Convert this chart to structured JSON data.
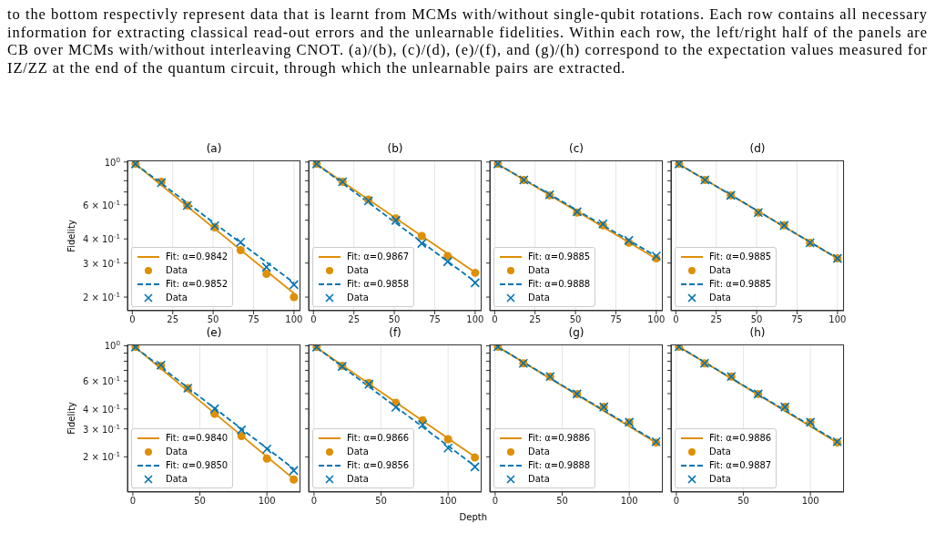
{
  "chart_data": [
    {
      "type": "line",
      "title": "(a)",
      "ylabel": "Fidelity",
      "log": true,
      "grid": "x",
      "legend": "bottom left",
      "xlim": [
        -3,
        104
      ],
      "xticks": [
        0,
        25,
        50,
        75,
        100
      ],
      "ylim": [
        0.17,
        1.02
      ],
      "yticks": [
        {
          "value": 0.2,
          "label": "2 × 10$^{-1}$"
        },
        {
          "value": 0.3,
          "label": "3 × 10$^{-1}$"
        },
        {
          "value": 0.4,
          "label": "4 × 10$^{-1}$"
        },
        {
          "value": 0.5,
          "label": null
        },
        {
          "value": 0.6,
          "label": "6 × 10$^{-1}$"
        },
        {
          "value": 0.7,
          "label": null
        },
        {
          "value": 0.8,
          "label": null
        },
        {
          "value": 0.9,
          "label": null
        },
        {
          "value": 1,
          "label": "10$^{0}$"
        }
      ],
      "annotations": [
        "to the bottom respectivly represent data that is learnt from MCMs with/without single-qubit rotations. Each row contains all necessary information for extracting classical read-out errors and the unlearnable fidelities. Within each row, the left/right half of the panels are CB over MCMs with/without interleaving CNOT. (a)/(b), (c)/(d), (e)/(f), and (g)/(h) correspond to the expectation values measured for IZ/ZZ at the end of the quantum circuit, through which the unlearnable pairs are extracted."
      ],
      "series": [
        {
          "name": "Fit: α=0.9842",
          "type": "line",
          "color": "#de8f05",
          "line_style": "solid",
          "marker": "none",
          "x": [
            2,
            100
          ],
          "values": [
            0.975,
            0.209
          ]
        },
        {
          "name": "Data",
          "type": "scatter",
          "color": "#de8f05",
          "marker": "circle",
          "x": [
            2,
            18,
            34,
            51,
            67,
            83,
            100
          ],
          "values": [
            0.978,
            0.79,
            0.596,
            0.459,
            0.35,
            0.264,
            0.2
          ]
        },
        {
          "name": "Fit: α=0.9852",
          "type": "line",
          "color": "#0173b2",
          "line_style": "dashed",
          "marker": "none",
          "x": [
            2,
            100
          ],
          "values": [
            0.975,
            0.237
          ]
        },
        {
          "name": "Data",
          "type": "scatter",
          "color": "#0173b2",
          "marker": "cross",
          "x": [
            2,
            18,
            34,
            51,
            67,
            83,
            100
          ],
          "values": [
            0.978,
            0.782,
            0.596,
            0.468,
            0.385,
            0.286,
            0.232
          ]
        }
      ]
    },
    {
      "type": "line",
      "title": "(b)",
      "log": true,
      "grid": "x",
      "legend": "bottom left",
      "tick_labels": "x",
      "xlim": [
        -3,
        104
      ],
      "xticks": [
        0,
        25,
        50,
        75,
        100
      ],
      "ylim": [
        0.17,
        1.02
      ],
      "yticks": [
        {
          "value": 0.2,
          "label": null
        },
        {
          "value": 0.3,
          "label": null
        },
        {
          "value": 0.4,
          "label": null
        },
        {
          "value": 0.5,
          "label": null
        },
        {
          "value": 0.6,
          "label": null
        },
        {
          "value": 0.7,
          "label": null
        },
        {
          "value": 0.8,
          "label": null
        },
        {
          "value": 0.9,
          "label": null
        },
        {
          "value": 1,
          "label": null
        }
      ],
      "series": [
        {
          "name": "Fit: α=0.9867",
          "type": "line",
          "color": "#de8f05",
          "line_style": "solid",
          "marker": "none",
          "x": [
            2,
            100
          ],
          "values": [
            0.975,
            0.268
          ]
        },
        {
          "name": "Data",
          "type": "scatter",
          "color": "#de8f05",
          "marker": "circle",
          "x": [
            2,
            18,
            34,
            51,
            67,
            83,
            100
          ],
          "values": [
            0.978,
            0.79,
            0.639,
            0.51,
            0.414,
            0.326,
            0.267
          ]
        },
        {
          "name": "Fit: α=0.9858",
          "type": "line",
          "color": "#0173b2",
          "line_style": "dashed",
          "marker": "none",
          "x": [
            2,
            100
          ],
          "values": [
            0.975,
            0.24
          ]
        },
        {
          "name": "Data",
          "type": "scatter",
          "color": "#0173b2",
          "marker": "cross",
          "x": [
            2,
            18,
            34,
            51,
            67,
            83,
            100
          ],
          "values": [
            0.978,
            0.79,
            0.629,
            0.499,
            0.379,
            0.305,
            0.237
          ]
        }
      ]
    },
    {
      "type": "line",
      "title": "(c)",
      "log": true,
      "grid": "x",
      "legend": "bottom left",
      "tick_labels": "x",
      "xlim": [
        -3,
        104
      ],
      "xticks": [
        0,
        25,
        50,
        75,
        100
      ],
      "ylim": [
        0.17,
        1.02
      ],
      "yticks": [
        {
          "value": 0.2,
          "label": null
        },
        {
          "value": 0.3,
          "label": null
        },
        {
          "value": 0.4,
          "label": null
        },
        {
          "value": 0.5,
          "label": null
        },
        {
          "value": 0.6,
          "label": null
        },
        {
          "value": 0.7,
          "label": null
        },
        {
          "value": 0.8,
          "label": null
        },
        {
          "value": 0.9,
          "label": null
        },
        {
          "value": 1,
          "label": null
        }
      ],
      "series": [
        {
          "name": "Fit: α=0.9885",
          "type": "line",
          "color": "#de8f05",
          "line_style": "solid",
          "marker": "none",
          "x": [
            2,
            100
          ],
          "values": [
            0.975,
            0.316
          ]
        },
        {
          "name": "Data",
          "type": "scatter",
          "color": "#de8f05",
          "marker": "circle",
          "x": [
            2,
            18,
            34,
            51,
            67,
            83,
            100
          ],
          "values": [
            0.978,
            0.808,
            0.672,
            0.548,
            0.47,
            0.383,
            0.317
          ]
        },
        {
          "name": "Fit: α=0.9888",
          "type": "line",
          "color": "#0173b2",
          "line_style": "dashed",
          "marker": "none",
          "x": [
            2,
            100
          ],
          "values": [
            0.975,
            0.325
          ]
        },
        {
          "name": "Data",
          "type": "scatter",
          "color": "#0173b2",
          "marker": "cross",
          "x": [
            2,
            18,
            34,
            51,
            67,
            83,
            100
          ],
          "values": [
            0.978,
            0.808,
            0.677,
            0.553,
            0.478,
            0.393,
            0.326
          ]
        }
      ]
    },
    {
      "type": "line",
      "title": "(d)",
      "log": true,
      "grid": "x",
      "legend": "bottom left",
      "tick_labels": "x",
      "xlim": [
        -3,
        104
      ],
      "xticks": [
        0,
        25,
        50,
        75,
        100
      ],
      "ylim": [
        0.17,
        1.02
      ],
      "yticks": [
        {
          "value": 0.2,
          "label": null
        },
        {
          "value": 0.3,
          "label": null
        },
        {
          "value": 0.4,
          "label": null
        },
        {
          "value": 0.5,
          "label": null
        },
        {
          "value": 0.6,
          "label": null
        },
        {
          "value": 0.7,
          "label": null
        },
        {
          "value": 0.8,
          "label": null
        },
        {
          "value": 0.9,
          "label": null
        },
        {
          "value": 1,
          "label": null
        }
      ],
      "series": [
        {
          "name": "Fit: α=0.9885",
          "type": "line",
          "color": "#de8f05",
          "line_style": "solid",
          "marker": "none",
          "x": [
            2,
            100
          ],
          "values": [
            0.975,
            0.317
          ]
        },
        {
          "name": "Data",
          "type": "scatter",
          "color": "#de8f05",
          "marker": "circle",
          "x": [
            2,
            18,
            34,
            51,
            67,
            83,
            100
          ],
          "values": [
            0.978,
            0.808,
            0.672,
            0.548,
            0.47,
            0.382,
            0.317
          ]
        },
        {
          "name": "Fit: α=0.9885",
          "type": "line",
          "color": "#0173b2",
          "line_style": "dashed",
          "marker": "none",
          "x": [
            2,
            100
          ],
          "values": [
            0.975,
            0.317
          ]
        },
        {
          "name": "Data",
          "type": "scatter",
          "color": "#0173b2",
          "marker": "cross",
          "x": [
            2,
            18,
            34,
            51,
            67,
            83,
            100
          ],
          "values": [
            0.978,
            0.808,
            0.672,
            0.548,
            0.47,
            0.382,
            0.317
          ]
        }
      ]
    },
    {
      "type": "line",
      "title": "(e)",
      "ylabel": "Fidelity",
      "log": true,
      "grid": "x",
      "legend": "bottom left",
      "xlim": [
        -4,
        125
      ],
      "xticks": [
        0,
        50,
        100
      ],
      "ylim": [
        0.12,
        1.02
      ],
      "yticks": [
        {
          "value": 0.2,
          "label": "2 × 10$^{-1}$"
        },
        {
          "value": 0.3,
          "label": "3 × 10$^{-1}$"
        },
        {
          "value": 0.4,
          "label": "4 × 10$^{-1}$"
        },
        {
          "value": 0.5,
          "label": null
        },
        {
          "value": 0.6,
          "label": "6 × 10$^{-1}$"
        },
        {
          "value": 0.7,
          "label": null
        },
        {
          "value": 0.8,
          "label": null
        },
        {
          "value": 0.9,
          "label": null
        },
        {
          "value": 1,
          "label": "10$^{0}$"
        }
      ],
      "series": [
        {
          "name": "Fit: α=0.9840",
          "type": "line",
          "color": "#de8f05",
          "line_style": "solid",
          "marker": "none",
          "x": [
            2,
            120
          ],
          "values": [
            0.975,
            0.145
          ]
        },
        {
          "name": "Data",
          "type": "scatter",
          "color": "#de8f05",
          "marker": "circle",
          "x": [
            2,
            21,
            41,
            61,
            81,
            100,
            120
          ],
          "values": [
            0.982,
            0.748,
            0.541,
            0.373,
            0.27,
            0.195,
            0.144
          ]
        },
        {
          "name": "Fit: α=0.9850",
          "type": "line",
          "color": "#0173b2",
          "line_style": "dashed",
          "marker": "none",
          "x": [
            2,
            120
          ],
          "values": [
            0.975,
            0.168
          ]
        },
        {
          "name": "Data",
          "type": "scatter",
          "color": "#0173b2",
          "marker": "cross",
          "x": [
            2,
            21,
            41,
            61,
            81,
            100,
            120
          ],
          "values": [
            0.982,
            0.755,
            0.541,
            0.401,
            0.295,
            0.224,
            0.164
          ]
        }
      ]
    },
    {
      "type": "line",
      "title": "(f)",
      "xlabel": "Depth",
      "log": true,
      "grid": "x",
      "legend": "bottom left",
      "tick_labels": "x",
      "xlim": [
        -4,
        125
      ],
      "xticks": [
        0,
        50,
        100
      ],
      "ylim": [
        0.12,
        1.02
      ],
      "yticks": [
        {
          "value": 0.2,
          "label": null
        },
        {
          "value": 0.3,
          "label": null
        },
        {
          "value": 0.4,
          "label": null
        },
        {
          "value": 0.5,
          "label": null
        },
        {
          "value": 0.6,
          "label": null
        },
        {
          "value": 0.7,
          "label": null
        },
        {
          "value": 0.8,
          "label": null
        },
        {
          "value": 0.9,
          "label": null
        },
        {
          "value": 1,
          "label": null
        }
      ],
      "series": [
        {
          "name": "Fit: α=0.9866",
          "type": "line",
          "color": "#de8f05",
          "line_style": "solid",
          "marker": "none",
          "x": [
            2,
            120
          ],
          "values": [
            0.975,
            0.2
          ]
        },
        {
          "name": "Data",
          "type": "scatter",
          "color": "#de8f05",
          "marker": "circle",
          "x": [
            2,
            21,
            41,
            61,
            81,
            100,
            120
          ],
          "values": [
            0.982,
            0.748,
            0.583,
            0.438,
            0.34,
            0.258,
            0.198
          ]
        },
        {
          "name": "Fit: α=0.9856",
          "type": "line",
          "color": "#0173b2",
          "line_style": "dashed",
          "marker": "none",
          "x": [
            2,
            120
          ],
          "values": [
            0.975,
            0.175
          ]
        },
        {
          "name": "Data",
          "type": "scatter",
          "color": "#0173b2",
          "marker": "cross",
          "x": [
            2,
            21,
            41,
            61,
            81,
            100,
            120
          ],
          "values": [
            0.982,
            0.742,
            0.573,
            0.41,
            0.319,
            0.227,
            0.173
          ]
        }
      ]
    },
    {
      "type": "line",
      "title": "(g)",
      "log": true,
      "grid": "x",
      "legend": "bottom left",
      "tick_labels": "x",
      "xlim": [
        -4,
        125
      ],
      "xticks": [
        0,
        50,
        100
      ],
      "ylim": [
        0.12,
        1.02
      ],
      "yticks": [
        {
          "value": 0.2,
          "label": null
        },
        {
          "value": 0.3,
          "label": null
        },
        {
          "value": 0.4,
          "label": null
        },
        {
          "value": 0.5,
          "label": null
        },
        {
          "value": 0.6,
          "label": null
        },
        {
          "value": 0.7,
          "label": null
        },
        {
          "value": 0.8,
          "label": null
        },
        {
          "value": 0.9,
          "label": null
        },
        {
          "value": 1,
          "label": null
        }
      ],
      "series": [
        {
          "name": "Fit: α=0.9886",
          "type": "line",
          "color": "#de8f05",
          "line_style": "solid",
          "marker": "none",
          "x": [
            2,
            120
          ],
          "values": [
            0.985,
            0.246
          ]
        },
        {
          "name": "Data",
          "type": "scatter",
          "color": "#de8f05",
          "marker": "circle",
          "x": [
            2,
            21,
            41,
            61,
            81,
            100,
            120
          ],
          "values": [
            0.987,
            0.776,
            0.64,
            0.497,
            0.412,
            0.33,
            0.246
          ]
        },
        {
          "name": "Fit: α=0.9888",
          "type": "line",
          "color": "#0173b2",
          "line_style": "dashed",
          "marker": "none",
          "x": [
            2,
            120
          ],
          "values": [
            0.985,
            0.249
          ]
        },
        {
          "name": "Data",
          "type": "scatter",
          "color": "#0173b2",
          "marker": "cross",
          "x": [
            2,
            21,
            41,
            61,
            81,
            100,
            120
          ],
          "values": [
            0.987,
            0.776,
            0.64,
            0.497,
            0.412,
            0.33,
            0.249
          ]
        }
      ]
    },
    {
      "type": "line",
      "title": "(h)",
      "log": true,
      "grid": "x",
      "legend": "bottom left",
      "tick_labels": "x",
      "xlim": [
        -4,
        125
      ],
      "xticks": [
        0,
        50,
        100
      ],
      "ylim": [
        0.12,
        1.02
      ],
      "yticks": [
        {
          "value": 0.2,
          "label": null
        },
        {
          "value": 0.3,
          "label": null
        },
        {
          "value": 0.4,
          "label": null
        },
        {
          "value": 0.5,
          "label": null
        },
        {
          "value": 0.6,
          "label": null
        },
        {
          "value": 0.7,
          "label": null
        },
        {
          "value": 0.8,
          "label": null
        },
        {
          "value": 0.9,
          "label": null
        },
        {
          "value": 1,
          "label": null
        }
      ],
      "series": [
        {
          "name": "Fit: α=0.9886",
          "type": "line",
          "color": "#de8f05",
          "line_style": "solid",
          "marker": "none",
          "x": [
            2,
            120
          ],
          "values": [
            0.985,
            0.246
          ]
        },
        {
          "name": "Data",
          "type": "scatter",
          "color": "#de8f05",
          "marker": "circle",
          "x": [
            2,
            21,
            41,
            61,
            81,
            100,
            120
          ],
          "values": [
            0.987,
            0.776,
            0.64,
            0.497,
            0.412,
            0.33,
            0.246
          ]
        },
        {
          "name": "Fit: α=0.9887",
          "type": "line",
          "color": "#0173b2",
          "line_style": "dashed",
          "marker": "none",
          "x": [
            2,
            120
          ],
          "values": [
            0.985,
            0.249
          ]
        },
        {
          "name": "Data",
          "type": "scatter",
          "color": "#0173b2",
          "marker": "cross",
          "x": [
            2,
            21,
            41,
            61,
            81,
            100,
            120
          ],
          "values": [
            0.987,
            0.776,
            0.64,
            0.497,
            0.412,
            0.33,
            0.249
          ]
        }
      ]
    }
  ]
}
